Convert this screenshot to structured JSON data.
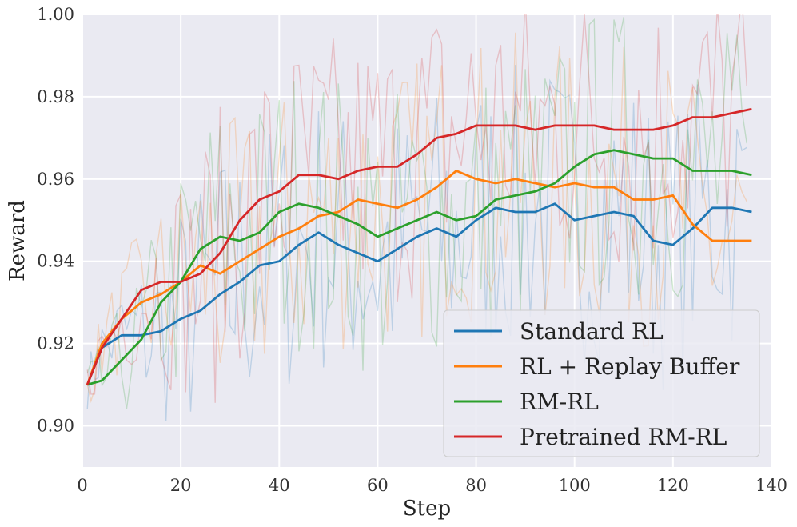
{
  "chart_data": {
    "type": "line",
    "title": "",
    "xlabel": "Step",
    "ylabel": "Reward",
    "xlim": [
      0,
      140
    ],
    "ylim": [
      0.89,
      1.0
    ],
    "grid": true,
    "x_ticks": [
      "0",
      "20",
      "40",
      "60",
      "80",
      "100",
      "120",
      "140"
    ],
    "y_ticks": [
      "0.90",
      "0.92",
      "0.94",
      "0.96",
      "0.98",
      "1.00"
    ],
    "legend_position": "bottom-right",
    "x": [
      1,
      4,
      8,
      12,
      16,
      20,
      24,
      28,
      32,
      36,
      40,
      44,
      48,
      52,
      56,
      60,
      64,
      68,
      72,
      76,
      80,
      84,
      88,
      92,
      96,
      100,
      104,
      108,
      112,
      116,
      120,
      124,
      128,
      132,
      136
    ],
    "series": [
      {
        "name": "Standard RL",
        "color": "#1f77b4",
        "values": [
          0.91,
          0.919,
          0.922,
          0.922,
          0.923,
          0.926,
          0.928,
          0.932,
          0.935,
          0.939,
          0.94,
          0.944,
          0.947,
          0.944,
          0.942,
          0.94,
          0.943,
          0.946,
          0.948,
          0.946,
          0.95,
          0.953,
          0.952,
          0.952,
          0.954,
          0.95,
          0.951,
          0.952,
          0.951,
          0.945,
          0.944,
          0.948,
          0.953,
          0.953,
          0.952
        ]
      },
      {
        "name": "RL + Replay Buffer",
        "color": "#ff7f0e",
        "values": [
          0.91,
          0.92,
          0.926,
          0.93,
          0.932,
          0.935,
          0.939,
          0.937,
          0.94,
          0.943,
          0.946,
          0.948,
          0.951,
          0.952,
          0.955,
          0.954,
          0.953,
          0.955,
          0.958,
          0.962,
          0.96,
          0.959,
          0.96,
          0.959,
          0.958,
          0.959,
          0.958,
          0.958,
          0.955,
          0.955,
          0.956,
          0.949,
          0.945,
          0.945,
          0.945
        ]
      },
      {
        "name": "RM-RL",
        "color": "#2ca02c",
        "values": [
          0.91,
          0.911,
          0.916,
          0.921,
          0.93,
          0.935,
          0.943,
          0.946,
          0.945,
          0.947,
          0.952,
          0.954,
          0.953,
          0.951,
          0.949,
          0.946,
          0.948,
          0.95,
          0.952,
          0.95,
          0.951,
          0.955,
          0.956,
          0.957,
          0.959,
          0.963,
          0.966,
          0.967,
          0.966,
          0.965,
          0.965,
          0.962,
          0.962,
          0.962,
          0.961
        ]
      },
      {
        "name": "Pretrained RM-RL",
        "color": "#d62728",
        "values": [
          0.91,
          0.919,
          0.926,
          0.933,
          0.935,
          0.935,
          0.937,
          0.942,
          0.95,
          0.955,
          0.957,
          0.961,
          0.961,
          0.96,
          0.962,
          0.963,
          0.963,
          0.966,
          0.97,
          0.971,
          0.973,
          0.973,
          0.973,
          0.972,
          0.973,
          0.973,
          0.973,
          0.972,
          0.972,
          0.972,
          0.973,
          0.975,
          0.975,
          0.976,
          0.977
        ]
      }
    ]
  }
}
